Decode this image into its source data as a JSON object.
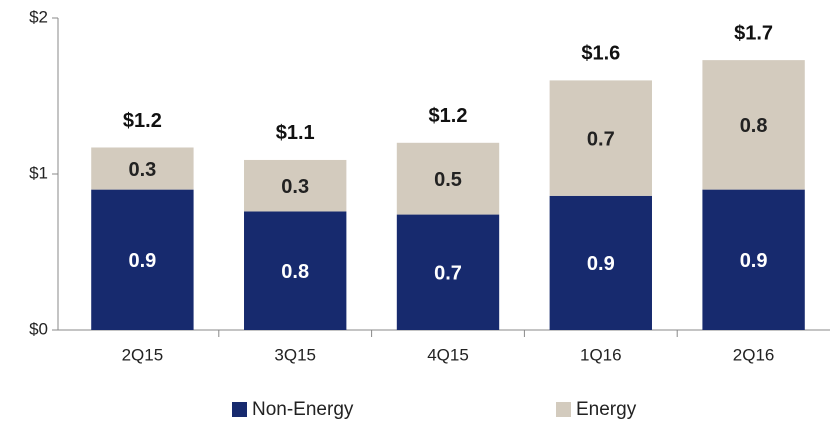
{
  "chart_data": {
    "type": "stacked_bar",
    "categories": [
      "2Q15",
      "3Q15",
      "4Q15",
      "1Q16",
      "2Q16"
    ],
    "series": [
      {
        "name": "Non-Energy",
        "color": "#172a6e",
        "values": [
          0.9,
          0.76,
          0.74,
          0.86,
          0.9
        ],
        "value_labels": [
          "0.9",
          "0.8",
          "0.7",
          "0.9",
          "0.9"
        ]
      },
      {
        "name": "Energy",
        "color": "#d3cbbe",
        "values": [
          0.27,
          0.33,
          0.46,
          0.74,
          0.83
        ],
        "value_labels": [
          "0.3",
          "0.3",
          "0.5",
          "0.7",
          "0.8"
        ]
      }
    ],
    "total_labels": [
      "$1.2",
      "$1.1",
      "$1.2",
      "$1.6",
      "$1.7"
    ],
    "ylim": [
      0,
      2
    ],
    "yticks": [
      {
        "value": 0,
        "label": "$0"
      },
      {
        "value": 1,
        "label": "$1"
      },
      {
        "value": 2,
        "label": "$2"
      }
    ],
    "grid": false,
    "legend": "bottom"
  }
}
